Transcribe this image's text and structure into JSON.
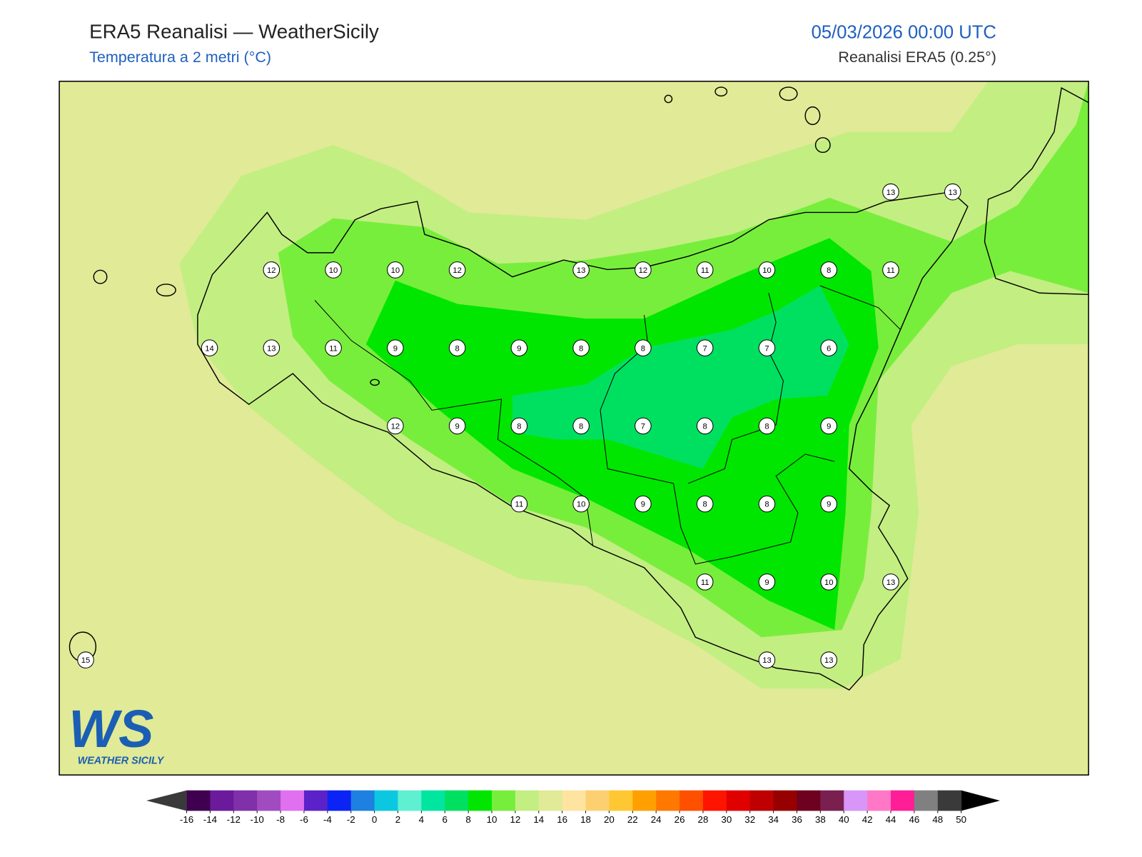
{
  "header": {
    "title": "ERA5 Reanalisi — WeatherSicily",
    "subtitle": "Temperatura a 2 metri (°C)",
    "datetime": "05/03/2026 00:00 UTC",
    "source": "Reanalisi ERA5 (0.25°)"
  },
  "stations": [
    [
      null,
      null,
      null,
      null,
      null,
      null,
      null,
      null,
      null,
      null,
      null,
      null,
      null,
      13,
      13
    ],
    [
      null,
      null,
      null,
      12,
      10,
      10,
      12,
      null,
      13,
      12,
      11,
      10,
      8,
      11,
      null
    ],
    [
      null,
      null,
      14,
      13,
      11,
      9,
      8,
      9,
      8,
      8,
      7,
      7,
      6,
      null,
      null
    ],
    [
      null,
      null,
      null,
      null,
      null,
      12,
      9,
      8,
      8,
      7,
      8,
      8,
      9,
      null,
      null
    ],
    [
      null,
      null,
      null,
      null,
      null,
      null,
      null,
      11,
      10,
      9,
      8,
      8,
      9,
      null,
      null
    ],
    [
      null,
      null,
      null,
      null,
      null,
      null,
      null,
      null,
      null,
      null,
      11,
      9,
      10,
      13,
      null
    ],
    [
      15,
      null,
      null,
      null,
      null,
      null,
      null,
      null,
      null,
      null,
      null,
      13,
      13,
      null,
      null
    ]
  ],
  "colorbar": {
    "ticks": [
      -16,
      -14,
      -12,
      -10,
      -8,
      -6,
      -4,
      -2,
      0,
      2,
      4,
      6,
      8,
      10,
      12,
      14,
      16,
      18,
      20,
      22,
      24,
      26,
      28,
      30,
      32,
      34,
      36,
      38,
      40,
      42,
      44,
      46,
      48,
      50
    ],
    "colors": [
      "#3f0050",
      "#6a1a9a",
      "#8030a8",
      "#a04cc0",
      "#e070f0",
      "#5a22c8",
      "#0b24f5",
      "#1e80e0",
      "#0bc8e0",
      "#5ef0d0",
      "#00e6a0",
      "#00e060",
      "#00e600",
      "#78ee3c",
      "#c3ee82",
      "#e1ea96",
      "#ffe3a0",
      "#fcd070",
      "#ffc832",
      "#ffa000",
      "#ff7800",
      "#ff5000",
      "#ff1400",
      "#e10000",
      "#be0000",
      "#960000",
      "#6e0020",
      "#7a2050",
      "#d896f8",
      "#ff78c8",
      "#ff1e96",
      "#808080",
      "#3a3a3a"
    ],
    "extend_colors": [
      "#3a3a3a",
      "#000000"
    ]
  },
  "logo": {
    "mark": "WS",
    "name": "WEATHER SICILY"
  }
}
